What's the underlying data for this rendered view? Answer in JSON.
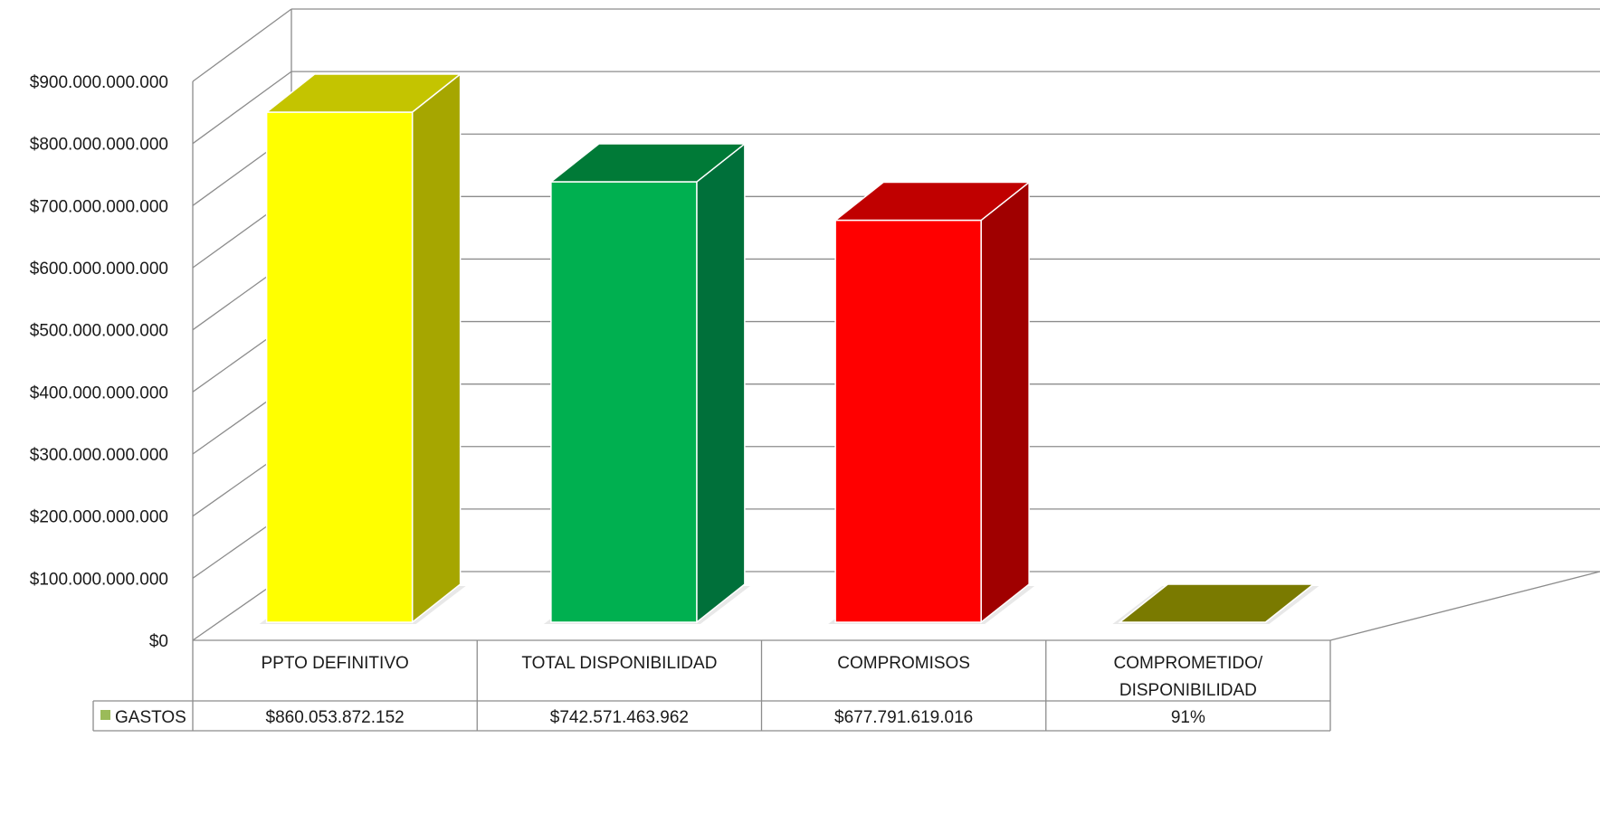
{
  "chart_data": {
    "type": "bar",
    "title": "",
    "xlabel": "",
    "ylabel": "",
    "ylim": [
      0,
      900000000000
    ],
    "y_ticks": [
      0,
      100000000000,
      200000000000,
      300000000000,
      400000000000,
      500000000000,
      600000000000,
      700000000000,
      800000000000,
      900000000000
    ],
    "y_tick_labels": [
      "$0",
      "$100.000.000.000",
      "$200.000.000.000",
      "$300.000.000.000",
      "$400.000.000.000",
      "$500.000.000.000",
      "$600.000.000.000",
      "$700.000.000.000",
      "$800.000.000.000",
      "$900.000.000.000"
    ],
    "grid": true,
    "style": "3d-column-with-data-table",
    "categories": [
      [
        "PPTO DEFINITIVO"
      ],
      [
        "TOTAL DISPONIBILIDAD"
      ],
      [
        "COMPROMISOS"
      ],
      [
        "COMPROMETIDO/",
        "DISPONIBILIDAD"
      ]
    ],
    "series": [
      {
        "name": "GASTOS",
        "legend_color": "#9BBB59",
        "values": [
          860053872152,
          742571463962,
          677791619016,
          0.91
        ],
        "value_labels": [
          "$860.053.872.152",
          "$742.571.463.962",
          "$677.791.619.016",
          "91%"
        ]
      }
    ],
    "bar_colors": [
      {
        "front": "#FFFF00",
        "top": "#C4C400",
        "side": "#A6A600"
      },
      {
        "front": "#00B050",
        "top": "#007A37",
        "side": "#00703A"
      },
      {
        "front": "#FF0000",
        "top": "#C00000",
        "side": "#A00000"
      },
      {
        "front": "#7F7F00",
        "top": "#7A7A00",
        "side": "#6B6B00"
      }
    ]
  }
}
